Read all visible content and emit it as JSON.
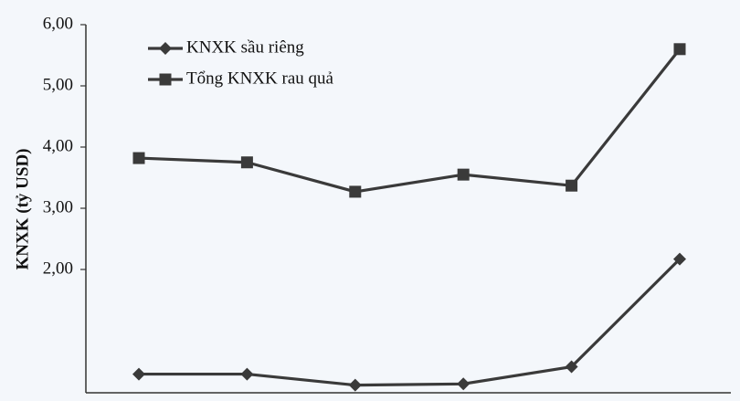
{
  "chart_data": {
    "type": "line",
    "ylabel": "KNXK (tỷ USD)",
    "xlabel": "",
    "ylim": [
      0,
      6
    ],
    "yticks": [
      {
        "value": 2,
        "label": "2,00"
      },
      {
        "value": 3,
        "label": "3,00"
      },
      {
        "value": 4,
        "label": "4,00"
      },
      {
        "value": 5,
        "label": "5,00"
      },
      {
        "value": 6,
        "label": "6,00"
      }
    ],
    "x": [
      1,
      2,
      3,
      4,
      5,
      6
    ],
    "series": [
      {
        "name": "KNXK sầu riêng",
        "marker": "diamond",
        "color": "#3a3a3a",
        "values": [
          0.29,
          0.29,
          0.11,
          0.13,
          0.41,
          2.17
        ]
      },
      {
        "name": "Tổng KNXK rau quả",
        "marker": "square",
        "color": "#3a3a3a",
        "values": [
          3.82,
          3.75,
          3.27,
          3.55,
          3.37,
          5.6
        ]
      }
    ],
    "grid": false,
    "legend": "top-left"
  }
}
